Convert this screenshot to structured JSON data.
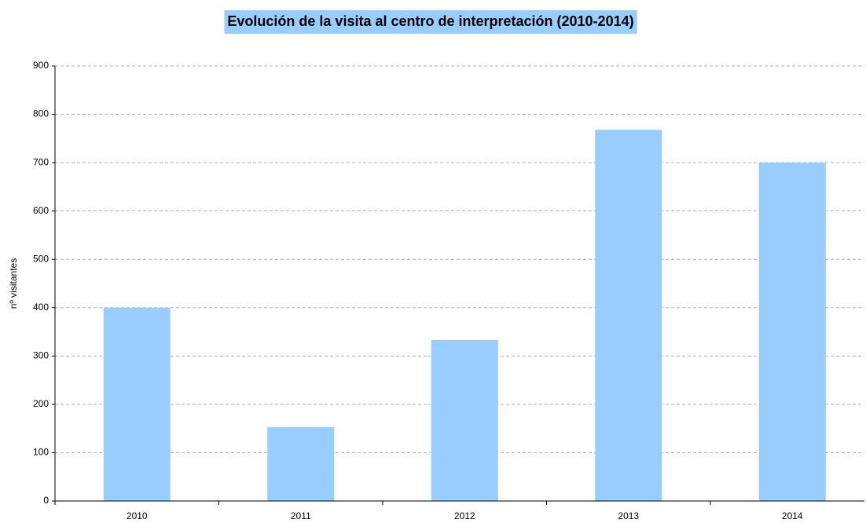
{
  "chart_data": {
    "type": "bar",
    "title": "Evolución de la visita al centro de interpretación (2010-2014)",
    "y_label": "nº visitantes",
    "categories": [
      "2010",
      "2011",
      "2012",
      "2013",
      "2014"
    ],
    "values": [
      400,
      153,
      333,
      768,
      700
    ],
    "color": "#99ccff",
    "ylim": [
      0,
      900
    ],
    "yticks": [
      0,
      100,
      200,
      300,
      400,
      500,
      600,
      700,
      800,
      900
    ],
    "grid": true
  }
}
